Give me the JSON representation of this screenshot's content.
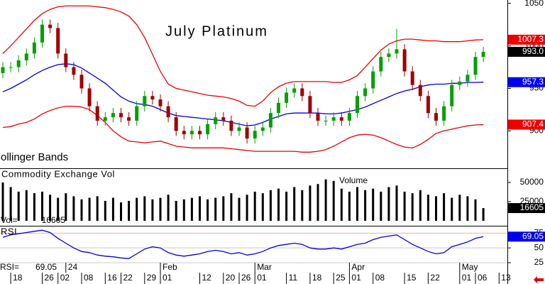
{
  "chart_data": [
    {
      "type": "candlestick",
      "title": "July Platinum",
      "subtitle": "Bollinger Bands",
      "categories": [
        null,
        "18",
        null,
        null,
        null,
        "26",
        null,
        "02",
        null,
        null,
        "08",
        null,
        null,
        "16",
        null,
        "22",
        null,
        null,
        "29",
        null,
        "01",
        null,
        null,
        null,
        null,
        "12",
        null,
        null,
        "20",
        null,
        "26",
        null,
        "01",
        null,
        null,
        null,
        "11",
        null,
        null,
        "18",
        null,
        null,
        "25",
        null,
        "01",
        null,
        null,
        "08",
        null,
        null,
        null,
        "15",
        null,
        null,
        "22",
        null,
        null,
        null,
        "01",
        null,
        "06",
        null,
        null,
        "13"
      ],
      "months": [
        null,
        null,
        null,
        null,
        null,
        null,
        null,
        null,
        "24",
        null,
        null,
        null,
        null,
        null,
        null,
        null,
        null,
        null,
        null,
        null,
        "Feb",
        null,
        null,
        null,
        null,
        null,
        null,
        null,
        null,
        null,
        null,
        null,
        "Mar",
        null,
        null,
        null,
        null,
        null,
        null,
        null,
        null,
        null,
        null,
        null,
        "Apr",
        null,
        null,
        null,
        null,
        null,
        null,
        null,
        null,
        null,
        null,
        null,
        null,
        null,
        "May",
        null,
        null,
        null,
        null,
        null
      ],
      "open": [
        968,
        975,
        975,
        983,
        991,
        1004,
        1025,
        1021,
        991,
        975,
        966,
        950,
        929,
        912,
        916,
        921,
        916,
        912,
        929,
        941,
        937,
        929,
        916,
        900,
        896,
        900,
        896,
        908,
        916,
        912,
        900,
        904,
        891,
        900,
        904,
        921,
        933,
        945,
        950,
        941,
        921,
        912,
        912,
        916,
        912,
        921,
        941,
        950,
        970,
        987,
        991,
        996,
        970,
        954,
        941,
        921,
        912,
        929,
        954,
        958,
        966,
        987,
        null,
        null
      ],
      "high": [
        981,
        981,
        989,
        997,
        1010,
        1031,
        1031,
        1027,
        997,
        981,
        972,
        956,
        935,
        922,
        927,
        927,
        922,
        935,
        947,
        947,
        943,
        935,
        922,
        906,
        906,
        906,
        914,
        922,
        922,
        918,
        910,
        910,
        906,
        910,
        927,
        939,
        951,
        956,
        956,
        947,
        927,
        918,
        922,
        922,
        927,
        947,
        956,
        976,
        993,
        997,
        1020,
        1002,
        976,
        960,
        947,
        927,
        935,
        960,
        964,
        972,
        993,
        999,
        null,
        null
      ],
      "low": [
        962,
        969,
        969,
        977,
        985,
        998,
        1015,
        985,
        969,
        960,
        944,
        923,
        906,
        906,
        910,
        910,
        906,
        906,
        923,
        931,
        923,
        910,
        894,
        890,
        890,
        890,
        890,
        902,
        906,
        894,
        894,
        885,
        885,
        894,
        898,
        915,
        927,
        939,
        935,
        915,
        906,
        906,
        906,
        906,
        906,
        915,
        935,
        944,
        964,
        981,
        985,
        964,
        948,
        935,
        915,
        906,
        906,
        923,
        948,
        952,
        960,
        981,
        null,
        null
      ],
      "close": [
        975,
        975,
        983,
        991,
        1004,
        1025,
        1021,
        991,
        975,
        966,
        950,
        929,
        912,
        916,
        921,
        916,
        912,
        929,
        941,
        937,
        929,
        916,
        900,
        896,
        900,
        896,
        908,
        916,
        912,
        900,
        904,
        891,
        900,
        904,
        921,
        933,
        945,
        950,
        941,
        921,
        912,
        912,
        916,
        912,
        921,
        941,
        950,
        970,
        987,
        991,
        996,
        970,
        954,
        941,
        921,
        912,
        929,
        954,
        958,
        966,
        987,
        993,
        null,
        null
      ],
      "upper": [
        991,
        1000,
        1010,
        1020,
        1030,
        1038,
        1043,
        1046,
        1047,
        1047,
        1047,
        1047,
        1046,
        1045,
        1043,
        1040,
        1035,
        1025,
        1010,
        990,
        970,
        955,
        950,
        948,
        946,
        944,
        942,
        941,
        940,
        938,
        935,
        930,
        929,
        935,
        945,
        952,
        956,
        958,
        958,
        958,
        958,
        958,
        957,
        957,
        960,
        965,
        975,
        985,
        995,
        1002,
        1006,
        1008,
        1008,
        1007,
        1006,
        1006,
        1005,
        1005,
        1005,
        1006,
        1007,
        1007.3,
        null,
        null
      ],
      "middle": [
        946,
        950,
        955,
        960,
        966,
        971,
        975,
        978,
        979,
        978,
        974,
        968,
        962,
        956,
        948,
        940,
        935,
        932,
        931,
        929,
        925,
        921,
        918,
        917,
        916,
        915,
        914,
        913,
        912,
        910,
        908,
        906,
        907,
        910,
        914,
        917,
        920,
        921,
        921,
        921,
        921,
        920,
        920,
        921,
        923,
        925,
        928,
        932,
        936,
        940,
        944,
        947,
        949,
        952,
        954,
        955,
        955,
        956,
        956,
        957,
        957,
        957.3,
        null,
        null
      ],
      "lower": [
        904,
        905,
        908,
        910,
        914,
        920,
        924,
        927,
        929,
        929,
        928,
        925,
        918,
        910,
        900,
        893,
        888,
        887,
        886,
        887,
        888,
        885,
        882,
        881,
        880,
        880,
        880,
        880,
        880,
        879,
        878,
        877,
        876,
        876,
        876,
        876,
        876,
        876,
        875,
        875,
        876,
        878,
        882,
        887,
        892,
        895,
        896,
        895,
        892,
        888,
        884,
        881,
        880,
        884,
        890,
        897,
        900,
        902,
        904,
        906,
        907,
        907.4,
        null,
        null
      ],
      "color_up": "#00a000",
      "color_down": "#a00000",
      "band_color": "#ee0000",
      "middle_color": "#0000dd",
      "ylim": [
        856,
        1054
      ],
      "yticks": [
        900,
        950,
        1000,
        1050
      ],
      "tags": [
        {
          "value": 1007.3,
          "color": "#ee0000"
        },
        {
          "value": 993,
          "label": "993.0",
          "color": "#000000"
        },
        {
          "value": 957.3,
          "color": "#0000ee"
        },
        {
          "value": 907.4,
          "color": "#ee0000"
        }
      ]
    },
    {
      "type": "bar",
      "title": "Commodity Exchange Vol",
      "subtitle": "Volume",
      "readout": "Vol=",
      "values": [
        50000,
        44000,
        38000,
        40000,
        36000,
        38000,
        34000,
        30000,
        36000,
        32000,
        28000,
        30000,
        32000,
        26000,
        30000,
        24000,
        26000,
        30000,
        32000,
        28000,
        30000,
        34000,
        26000,
        28000,
        30000,
        32000,
        28000,
        30000,
        32000,
        36000,
        30000,
        34000,
        38000,
        36000,
        40000,
        42000,
        38000,
        44000,
        40000,
        46000,
        48000,
        54000,
        52000,
        42000,
        38000,
        44000,
        40000,
        42000,
        38000,
        44000,
        46000,
        38000,
        36000,
        40000,
        34000,
        32000,
        36000,
        30000,
        34000,
        32000,
        28000,
        16605,
        null,
        null
      ],
      "color": "#000000",
      "ylim": [
        0,
        67600
      ],
      "yticks": [
        25000,
        50000
      ],
      "tags": [
        {
          "value": 16605,
          "color": "#000000"
        }
      ]
    },
    {
      "type": "line",
      "title": "RSI",
      "readout": "RSI=",
      "values": [
        68,
        72,
        74,
        76,
        78,
        80,
        76,
        66,
        58,
        50,
        44,
        42,
        38,
        36,
        35,
        33,
        32,
        40,
        48,
        52,
        50,
        42,
        38,
        36,
        38,
        40,
        44,
        46,
        44,
        40,
        42,
        38,
        40,
        44,
        50,
        54,
        56,
        58,
        56,
        50,
        48,
        48,
        50,
        48,
        52,
        56,
        58,
        64,
        68,
        70,
        72,
        64,
        56,
        50,
        44,
        40,
        42,
        52,
        56,
        60,
        66,
        69.05,
        null,
        null
      ],
      "color": "#0000dd",
      "ylim": [
        -11,
        85
      ],
      "yticks": [
        25,
        50,
        75
      ],
      "grid": true,
      "tags": [
        {
          "value": 69.05,
          "color": "#0000ee"
        }
      ]
    }
  ]
}
